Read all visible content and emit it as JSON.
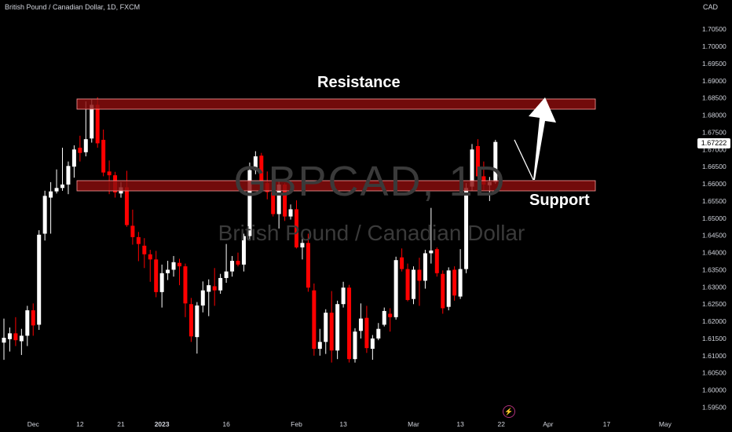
{
  "header": {
    "symbol_title": "British Pound / Canadian Dollar, 1D, FXCM",
    "currency": "CAD"
  },
  "watermark": {
    "ticker": "GBPCAD, 1D",
    "name": "British Pound / Canadian Dollar"
  },
  "annotations": {
    "resistance_label": "Resistance",
    "support_label": "Support",
    "last_price": "1.67222"
  },
  "colors": {
    "background": "#000000",
    "bull_candle": "#ffffff",
    "bear_candle": "#ff0000",
    "zone_fill": "#8b0e0e",
    "grid_text": "#d1d4dc",
    "event_icon": "#b0307a"
  },
  "icons": {
    "event": "lightning-icon"
  },
  "chart_data": {
    "type": "candlestick",
    "title": "British Pound / Canadian Dollar, 1D, FXCM",
    "ylabel": "CAD",
    "ylim": [
      1.5935,
      1.7135
    ],
    "y_ticks": [
      "1.70500",
      "1.70000",
      "1.69500",
      "1.69000",
      "1.68500",
      "1.68000",
      "1.67500",
      "1.67000",
      "1.66500",
      "1.66000",
      "1.65500",
      "1.65000",
      "1.64500",
      "1.64000",
      "1.63500",
      "1.63000",
      "1.62500",
      "1.62000",
      "1.61500",
      "1.61000",
      "1.60500",
      "1.60000",
      "1.59500"
    ],
    "x_ticks": [
      {
        "label": "Dec",
        "index": 5
      },
      {
        "label": "12",
        "index": 13
      },
      {
        "label": "21",
        "index": 20
      },
      {
        "label": "2023",
        "index": 27
      },
      {
        "label": "16",
        "index": 38
      },
      {
        "label": "Feb",
        "index": 50
      },
      {
        "label": "13",
        "index": 58
      },
      {
        "label": "Mar",
        "index": 70
      },
      {
        "label": "13",
        "index": 78
      },
      {
        "label": "22",
        "index": 85
      },
      {
        "label": "Apr",
        "index": 93
      },
      {
        "label": "17",
        "index": 103
      },
      {
        "label": "May",
        "index": 113
      }
    ],
    "candles": [
      {
        "o": 1.6138,
        "h": 1.6208,
        "l": 1.6088,
        "c": 1.6152
      },
      {
        "o": 1.6148,
        "h": 1.6182,
        "l": 1.6112,
        "c": 1.6165
      },
      {
        "o": 1.6165,
        "h": 1.6212,
        "l": 1.6128,
        "c": 1.6145
      },
      {
        "o": 1.6142,
        "h": 1.6178,
        "l": 1.6102,
        "c": 1.6158
      },
      {
        "o": 1.6158,
        "h": 1.6245,
        "l": 1.6128,
        "c": 1.6232
      },
      {
        "o": 1.6232,
        "h": 1.6252,
        "l": 1.6158,
        "c": 1.6188
      },
      {
        "o": 1.619,
        "h": 1.6465,
        "l": 1.6175,
        "c": 1.6452
      },
      {
        "o": 1.6455,
        "h": 1.658,
        "l": 1.6435,
        "c": 1.6565
      },
      {
        "o": 1.656,
        "h": 1.6605,
        "l": 1.6455,
        "c": 1.6578
      },
      {
        "o": 1.6578,
        "h": 1.6642,
        "l": 1.6572,
        "c": 1.6588
      },
      {
        "o": 1.6588,
        "h": 1.6705,
        "l": 1.658,
        "c": 1.6598
      },
      {
        "o": 1.6598,
        "h": 1.6665,
        "l": 1.657,
        "c": 1.6652
      },
      {
        "o": 1.665,
        "h": 1.6712,
        "l": 1.6618,
        "c": 1.67
      },
      {
        "o": 1.6705,
        "h": 1.674,
        "l": 1.6665,
        "c": 1.669
      },
      {
        "o": 1.6692,
        "h": 1.684,
        "l": 1.668,
        "c": 1.673
      },
      {
        "o": 1.6732,
        "h": 1.6845,
        "l": 1.672,
        "c": 1.683
      },
      {
        "o": 1.683,
        "h": 1.6852,
        "l": 1.6705,
        "c": 1.6718
      },
      {
        "o": 1.6728,
        "h": 1.6758,
        "l": 1.6622,
        "c": 1.6633
      },
      {
        "o": 1.6636,
        "h": 1.6668,
        "l": 1.657,
        "c": 1.6625
      },
      {
        "o": 1.6625,
        "h": 1.6635,
        "l": 1.656,
        "c": 1.6575
      },
      {
        "o": 1.6572,
        "h": 1.6605,
        "l": 1.656,
        "c": 1.659
      },
      {
        "o": 1.659,
        "h": 1.6638,
        "l": 1.6475,
        "c": 1.648
      },
      {
        "o": 1.6478,
        "h": 1.6525,
        "l": 1.6423,
        "c": 1.6445
      },
      {
        "o": 1.6445,
        "h": 1.646,
        "l": 1.6375,
        "c": 1.6425
      },
      {
        "o": 1.642,
        "h": 1.6442,
        "l": 1.6355,
        "c": 1.6395
      },
      {
        "o": 1.6395,
        "h": 1.6408,
        "l": 1.6315,
        "c": 1.638
      },
      {
        "o": 1.638,
        "h": 1.6405,
        "l": 1.627,
        "c": 1.6285
      },
      {
        "o": 1.6285,
        "h": 1.6365,
        "l": 1.624,
        "c": 1.634
      },
      {
        "o": 1.634,
        "h": 1.6376,
        "l": 1.632,
        "c": 1.635
      },
      {
        "o": 1.635,
        "h": 1.639,
        "l": 1.633,
        "c": 1.6372
      },
      {
        "o": 1.637,
        "h": 1.6382,
        "l": 1.6305,
        "c": 1.636
      },
      {
        "o": 1.636,
        "h": 1.6368,
        "l": 1.6212,
        "c": 1.6252
      },
      {
        "o": 1.625,
        "h": 1.6268,
        "l": 1.614,
        "c": 1.6156
      },
      {
        "o": 1.6154,
        "h": 1.6256,
        "l": 1.6106,
        "c": 1.6246
      },
      {
        "o": 1.6246,
        "h": 1.6316,
        "l": 1.6226,
        "c": 1.629
      },
      {
        "o": 1.6286,
        "h": 1.6322,
        "l": 1.6215,
        "c": 1.6305
      },
      {
        "o": 1.6302,
        "h": 1.6355,
        "l": 1.6245,
        "c": 1.629
      },
      {
        "o": 1.629,
        "h": 1.6338,
        "l": 1.628,
        "c": 1.6326
      },
      {
        "o": 1.6326,
        "h": 1.6425,
        "l": 1.6312,
        "c": 1.6345
      },
      {
        "o": 1.6345,
        "h": 1.639,
        "l": 1.633,
        "c": 1.6376
      },
      {
        "o": 1.6376,
        "h": 1.64,
        "l": 1.636,
        "c": 1.6365
      },
      {
        "o": 1.6365,
        "h": 1.6455,
        "l": 1.6345,
        "c": 1.6448
      },
      {
        "o": 1.6448,
        "h": 1.6662,
        "l": 1.6435,
        "c": 1.664
      },
      {
        "o": 1.664,
        "h": 1.6695,
        "l": 1.6628,
        "c": 1.668
      },
      {
        "o": 1.6682,
        "h": 1.669,
        "l": 1.6582,
        "c": 1.6598
      },
      {
        "o": 1.6602,
        "h": 1.6636,
        "l": 1.6555,
        "c": 1.6576
      },
      {
        "o": 1.6576,
        "h": 1.6598,
        "l": 1.6505,
        "c": 1.6512
      },
      {
        "o": 1.6512,
        "h": 1.6608,
        "l": 1.647,
        "c": 1.6598
      },
      {
        "o": 1.6598,
        "h": 1.6602,
        "l": 1.6492,
        "c": 1.6505
      },
      {
        "o": 1.6505,
        "h": 1.654,
        "l": 1.6496,
        "c": 1.6526
      },
      {
        "o": 1.6526,
        "h": 1.6552,
        "l": 1.6412,
        "c": 1.6415
      },
      {
        "o": 1.6415,
        "h": 1.6455,
        "l": 1.638,
        "c": 1.6428
      },
      {
        "o": 1.6428,
        "h": 1.6455,
        "l": 1.6286,
        "c": 1.6298
      },
      {
        "o": 1.629,
        "h": 1.631,
        "l": 1.61,
        "c": 1.612
      },
      {
        "o": 1.612,
        "h": 1.6178,
        "l": 1.61,
        "c": 1.614
      },
      {
        "o": 1.614,
        "h": 1.6235,
        "l": 1.6105,
        "c": 1.6225
      },
      {
        "o": 1.6225,
        "h": 1.6288,
        "l": 1.608,
        "c": 1.6115
      },
      {
        "o": 1.6115,
        "h": 1.626,
        "l": 1.609,
        "c": 1.625
      },
      {
        "o": 1.625,
        "h": 1.6315,
        "l": 1.624,
        "c": 1.6298
      },
      {
        "o": 1.6298,
        "h": 1.6306,
        "l": 1.608,
        "c": 1.609
      },
      {
        "o": 1.609,
        "h": 1.618,
        "l": 1.608,
        "c": 1.617
      },
      {
        "o": 1.6172,
        "h": 1.6252,
        "l": 1.615,
        "c": 1.6208
      },
      {
        "o": 1.621,
        "h": 1.6245,
        "l": 1.6108,
        "c": 1.6122
      },
      {
        "o": 1.612,
        "h": 1.616,
        "l": 1.6088,
        "c": 1.615
      },
      {
        "o": 1.615,
        "h": 1.6195,
        "l": 1.6145,
        "c": 1.6178
      },
      {
        "o": 1.619,
        "h": 1.624,
        "l": 1.6185,
        "c": 1.623
      },
      {
        "o": 1.6222,
        "h": 1.6238,
        "l": 1.617,
        "c": 1.6212
      },
      {
        "o": 1.6212,
        "h": 1.6388,
        "l": 1.6205,
        "c": 1.6378
      },
      {
        "o": 1.6386,
        "h": 1.6412,
        "l": 1.6345,
        "c": 1.6352
      },
      {
        "o": 1.6352,
        "h": 1.6368,
        "l": 1.6258,
        "c": 1.6262
      },
      {
        "o": 1.6265,
        "h": 1.636,
        "l": 1.625,
        "c": 1.635
      },
      {
        "o": 1.635,
        "h": 1.6385,
        "l": 1.6245,
        "c": 1.6318
      },
      {
        "o": 1.6318,
        "h": 1.6408,
        "l": 1.6295,
        "c": 1.6398
      },
      {
        "o": 1.6398,
        "h": 1.653,
        "l": 1.6368,
        "c": 1.6406
      },
      {
        "o": 1.641,
        "h": 1.6415,
        "l": 1.633,
        "c": 1.634
      },
      {
        "o": 1.6338,
        "h": 1.6348,
        "l": 1.6222,
        "c": 1.6238
      },
      {
        "o": 1.6242,
        "h": 1.6357,
        "l": 1.6232,
        "c": 1.6348
      },
      {
        "o": 1.635,
        "h": 1.636,
        "l": 1.626,
        "c": 1.6275
      },
      {
        "o": 1.6272,
        "h": 1.641,
        "l": 1.6265,
        "c": 1.6352
      },
      {
        "o": 1.6352,
        "h": 1.6602,
        "l": 1.634,
        "c": 1.6588
      },
      {
        "o": 1.6592,
        "h": 1.6716,
        "l": 1.658,
        "c": 1.67
      },
      {
        "o": 1.671,
        "h": 1.673,
        "l": 1.6608,
        "c": 1.6622
      },
      {
        "o": 1.6622,
        "h": 1.6665,
        "l": 1.6582,
        "c": 1.6598
      },
      {
        "o": 1.6596,
        "h": 1.662,
        "l": 1.655,
        "c": 1.6605
      },
      {
        "o": 1.6605,
        "h": 1.6728,
        "l": 1.66,
        "c": 1.6722
      }
    ]
  }
}
